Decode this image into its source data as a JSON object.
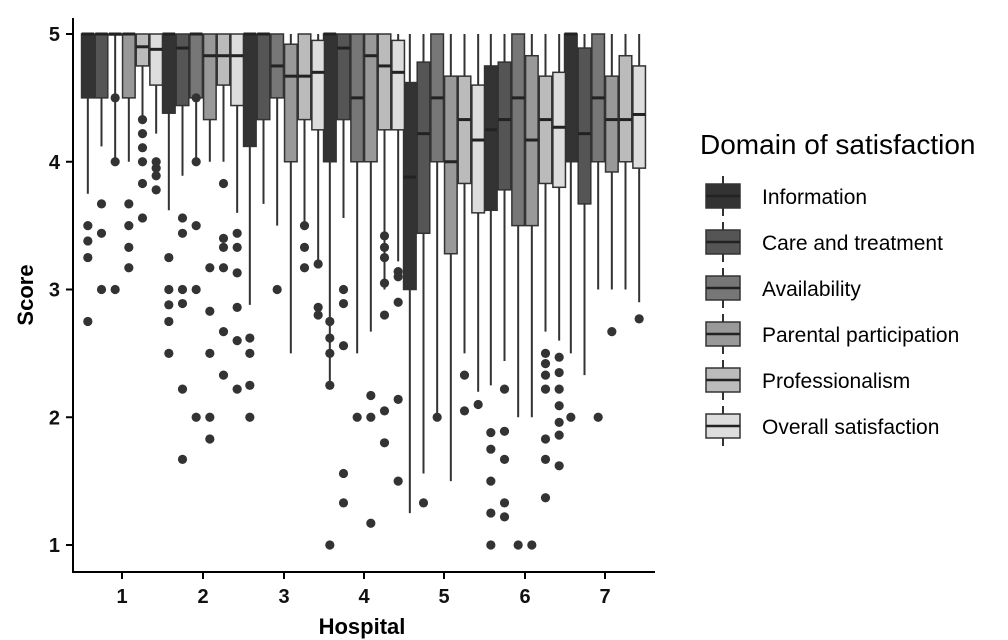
{
  "chart_data": {
    "type": "boxplot",
    "xlabel": "Hospital",
    "ylabel": "Score",
    "categories": [
      "1",
      "2",
      "3",
      "4",
      "5",
      "6",
      "7"
    ],
    "ylim": [
      0.85,
      5.1
    ],
    "yticks": [
      1,
      2,
      3,
      4,
      5
    ],
    "grid": false,
    "legend": {
      "title": "Domain of satisfaction",
      "position": "right"
    },
    "series": [
      {
        "name": "Information",
        "color": "#333333",
        "boxes": [
          {
            "min": 3.75,
            "q1": 4.5,
            "median": 5.0,
            "q3": 5.0,
            "max": 5.0,
            "outliers": [
              3.5,
              3.38,
              3.25,
              2.75
            ]
          },
          {
            "min": 3.62,
            "q1": 4.38,
            "median": 5.0,
            "q3": 5.0,
            "max": 5.0,
            "outliers": [
              3.25,
              3.0,
              2.88,
              2.75,
              2.5
            ]
          },
          {
            "min": 2.88,
            "q1": 4.12,
            "median": 5.0,
            "q3": 5.0,
            "max": 5.0,
            "outliers": [
              2.62,
              2.5,
              2.25,
              2.0
            ]
          },
          {
            "min": 2.25,
            "q1": 4.0,
            "median": 5.0,
            "q3": 5.0,
            "max": 5.0,
            "outliers": [
              2.75,
              2.62,
              2.5,
              2.25,
              1.0
            ]
          },
          {
            "min": 1.25,
            "q1": 3.0,
            "median": 3.88,
            "q3": 4.62,
            "max": 5.0,
            "outliers": []
          },
          {
            "min": 2.25,
            "q1": 3.62,
            "median": 4.25,
            "q3": 4.75,
            "max": 5.0,
            "outliers": [
              1.88,
              1.75,
              1.5,
              1.25,
              1.0
            ]
          },
          {
            "min": 2.5,
            "q1": 4.0,
            "median": 5.0,
            "q3": 5.0,
            "max": 5.0,
            "outliers": [
              2.0
            ]
          }
        ]
      },
      {
        "name": "Care and treatment",
        "color": "#555555",
        "boxes": [
          {
            "min": 4.12,
            "q1": 4.5,
            "median": 5.0,
            "q3": 5.0,
            "max": 5.0,
            "outliers": [
              3.67,
              3.44,
              3.0
            ]
          },
          {
            "min": 3.89,
            "q1": 4.44,
            "median": 4.89,
            "q3": 5.0,
            "max": 5.0,
            "outliers": [
              3.56,
              3.44,
              3.0,
              2.89,
              2.22,
              1.67
            ]
          },
          {
            "min": 3.67,
            "q1": 4.33,
            "median": 5.0,
            "q3": 5.0,
            "max": 5.0,
            "outliers": []
          },
          {
            "min": 3.56,
            "q1": 4.33,
            "median": 4.89,
            "q3": 5.0,
            "max": 5.0,
            "outliers": [
              3.0,
              2.89,
              2.56,
              1.56,
              1.33
            ]
          },
          {
            "min": 1.56,
            "q1": 3.44,
            "median": 4.22,
            "q3": 4.78,
            "max": 5.0,
            "outliers": [
              1.33
            ]
          },
          {
            "min": 2.44,
            "q1": 3.78,
            "median": 4.33,
            "q3": 4.78,
            "max": 5.0,
            "outliers": [
              2.22,
              1.89,
              1.67,
              1.33,
              1.22
            ]
          },
          {
            "min": 2.33,
            "q1": 3.67,
            "median": 4.22,
            "q3": 4.89,
            "max": 5.0,
            "outliers": []
          }
        ]
      },
      {
        "name": "Availability",
        "color": "#777777",
        "boxes": [
          {
            "min": 4.0,
            "q1": 5.0,
            "median": 5.0,
            "q3": 5.0,
            "max": 5.0,
            "outliers": [
              4.5,
              4.0,
              3.0
            ]
          },
          {
            "min": 4.0,
            "q1": 4.5,
            "median": 5.0,
            "q3": 5.0,
            "max": 5.0,
            "outliers": [
              4.5,
              4.0,
              3.5,
              3.0,
              2.0
            ]
          },
          {
            "min": 3.5,
            "q1": 4.5,
            "median": 4.75,
            "q3": 5.0,
            "max": 5.0,
            "outliers": [
              3.0
            ]
          },
          {
            "min": 2.5,
            "q1": 4.0,
            "median": 4.5,
            "q3": 5.0,
            "max": 5.0,
            "outliers": [
              2.0
            ]
          },
          {
            "min": 2.0,
            "q1": 4.0,
            "median": 4.5,
            "q3": 5.0,
            "max": 5.0,
            "outliers": [
              2.0
            ]
          },
          {
            "min": 2.0,
            "q1": 3.5,
            "median": 4.5,
            "q3": 5.0,
            "max": 5.0,
            "outliers": [
              1.0
            ]
          },
          {
            "min": 3.0,
            "q1": 4.0,
            "median": 4.5,
            "q3": 5.0,
            "max": 5.0,
            "outliers": [
              2.0
            ]
          }
        ]
      },
      {
        "name": "Parental participation",
        "color": "#999999",
        "boxes": [
          {
            "min": 4.0,
            "q1": 4.5,
            "median": 5.0,
            "q3": 5.0,
            "max": 5.0,
            "outliers": [
              3.67,
              3.5,
              3.33,
              3.17
            ]
          },
          {
            "min": 4.0,
            "q1": 4.33,
            "median": 4.83,
            "q3": 5.0,
            "max": 5.0,
            "outliers": [
              3.17,
              2.83,
              2.5,
              2.0,
              1.83
            ]
          },
          {
            "min": 2.5,
            "q1": 4.0,
            "median": 4.67,
            "q3": 4.92,
            "max": 5.0,
            "outliers": []
          },
          {
            "min": 2.67,
            "q1": 4.0,
            "median": 4.83,
            "q3": 5.0,
            "max": 5.0,
            "outliers": [
              2.17,
              2.0,
              1.17
            ]
          },
          {
            "min": 1.5,
            "q1": 3.28,
            "median": 4.0,
            "q3": 4.67,
            "max": 5.0,
            "outliers": []
          },
          {
            "min": 2.0,
            "q1": 3.5,
            "median": 4.17,
            "q3": 4.83,
            "max": 5.0,
            "outliers": [
              1.0
            ]
          },
          {
            "min": 3.0,
            "q1": 3.92,
            "median": 4.33,
            "q3": 4.67,
            "max": 5.0,
            "outliers": [
              2.67
            ]
          }
        ]
      },
      {
        "name": "Professionalism",
        "color": "#bbbbbb",
        "boxes": [
          {
            "min": 4.33,
            "q1": 4.75,
            "median": 4.9,
            "q3": 5.0,
            "max": 5.0,
            "outliers": [
              4.33,
              4.22,
              4.11,
              4.0,
              3.83,
              3.56
            ]
          },
          {
            "min": 4.0,
            "q1": 4.6,
            "median": 4.83,
            "q3": 5.0,
            "max": 5.0,
            "outliers": [
              3.83,
              3.4,
              3.33,
              3.17,
              2.67,
              2.33
            ]
          },
          {
            "min": 3.5,
            "q1": 4.33,
            "median": 4.67,
            "q3": 5.0,
            "max": 5.0,
            "outliers": [
              3.5,
              3.33,
              3.17
            ]
          },
          {
            "min": 3.0,
            "q1": 4.25,
            "median": 4.75,
            "q3": 5.0,
            "max": 5.0,
            "outliers": [
              3.42,
              3.33,
              3.25,
              3.05,
              2.8,
              2.05,
              1.8
            ]
          },
          {
            "min": 2.5,
            "q1": 3.83,
            "median": 4.33,
            "q3": 4.67,
            "max": 5.0,
            "outliers": [
              2.33,
              2.05
            ]
          },
          {
            "min": 2.67,
            "q1": 3.83,
            "median": 4.33,
            "q3": 4.67,
            "max": 5.0,
            "outliers": [
              2.5,
              2.42,
              2.33,
              2.22,
              1.83,
              1.67,
              1.37
            ]
          },
          {
            "min": 3.0,
            "q1": 4.0,
            "median": 4.33,
            "q3": 4.83,
            "max": 5.0,
            "outliers": []
          }
        ]
      },
      {
        "name": "Overall satisfaction",
        "color": "#dddddd",
        "boxes": [
          {
            "min": 4.22,
            "q1": 4.6,
            "median": 4.88,
            "q3": 5.0,
            "max": 5.0,
            "outliers": [
              4.0,
              3.95,
              3.89,
              3.78
            ]
          },
          {
            "min": 3.6,
            "q1": 4.44,
            "median": 4.83,
            "q3": 5.0,
            "max": 5.0,
            "outliers": [
              3.44,
              3.33,
              3.13,
              2.86,
              2.6,
              2.22
            ]
          },
          {
            "min": 3.2,
            "q1": 4.25,
            "median": 4.7,
            "q3": 4.95,
            "max": 5.0,
            "outliers": [
              3.2,
              2.86,
              2.8
            ]
          },
          {
            "min": 3.22,
            "q1": 4.25,
            "median": 4.7,
            "q3": 4.95,
            "max": 5.0,
            "outliers": [
              3.14,
              3.1,
              2.9,
              2.14,
              1.5
            ]
          },
          {
            "min": 2.2,
            "q1": 3.6,
            "median": 4.17,
            "q3": 4.6,
            "max": 5.0,
            "outliers": [
              2.1
            ]
          },
          {
            "min": 2.6,
            "q1": 3.8,
            "median": 4.27,
            "q3": 4.7,
            "max": 5.0,
            "outliers": [
              2.47,
              2.35,
              2.22,
              2.09,
              1.96,
              1.86,
              1.62
            ]
          },
          {
            "min": 2.9,
            "q1": 3.95,
            "median": 4.37,
            "q3": 4.75,
            "max": 5.0,
            "outliers": [
              2.77
            ]
          }
        ]
      }
    ]
  }
}
